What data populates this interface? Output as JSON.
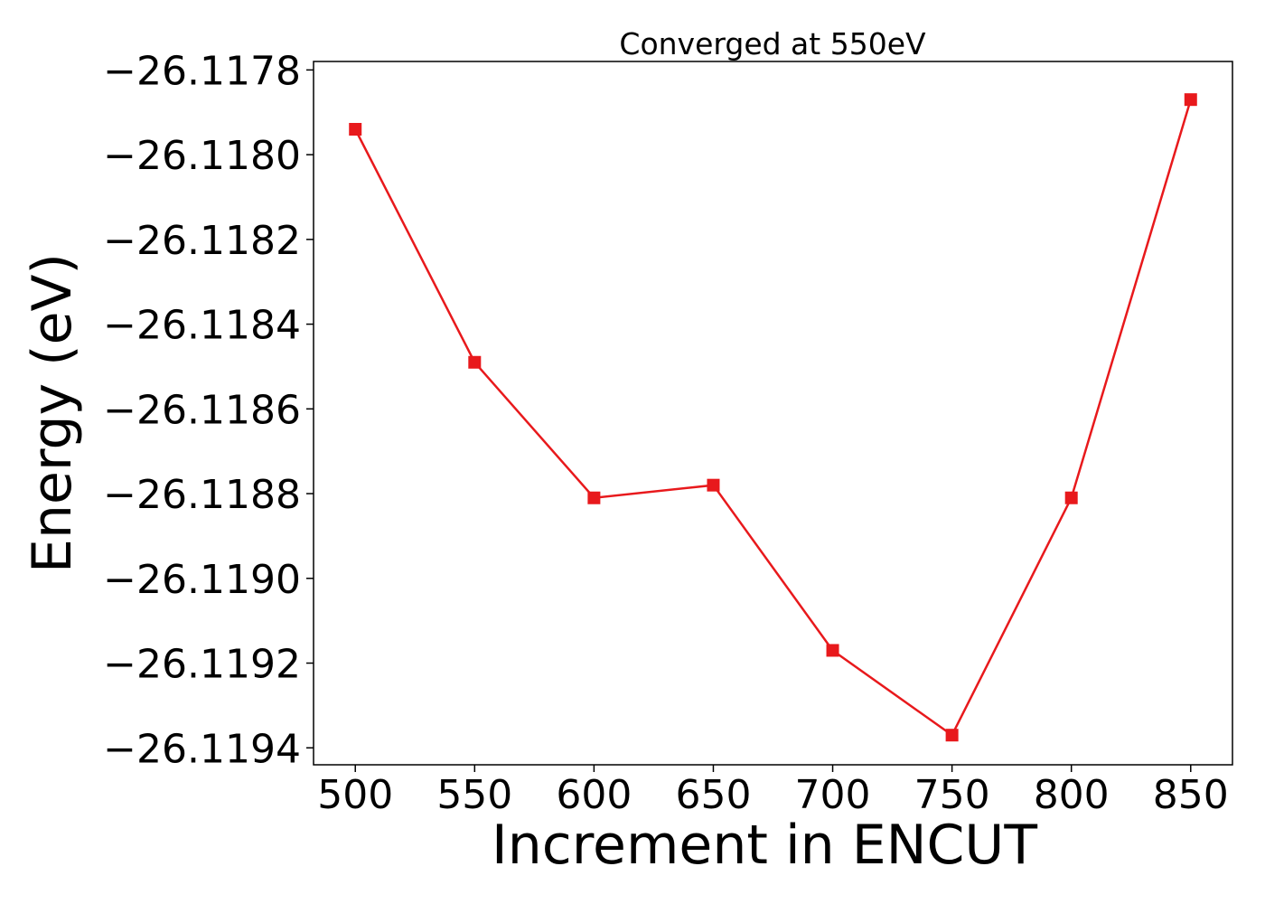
{
  "chart_data": {
    "type": "line",
    "title": "Converged at 550eV",
    "xlabel": "Increment in ENCUT",
    "ylabel": "Energy (eV)",
    "x": [
      500,
      550,
      600,
      650,
      700,
      750,
      800,
      850
    ],
    "series": [
      {
        "values": [
          -26.11794,
          -26.11849,
          -26.11881,
          -26.11878,
          -26.11917,
          -26.11937,
          -26.11881,
          -26.11787
        ],
        "color": "#e8191c",
        "marker": "square"
      }
    ],
    "xticks": [
      500,
      550,
      600,
      650,
      700,
      750,
      800,
      850
    ],
    "xtick_labels": [
      "500",
      "550",
      "600",
      "650",
      "700",
      "750",
      "800",
      "850"
    ],
    "yticks": [
      -26.1178,
      -26.118,
      -26.1182,
      -26.1184,
      -26.1186,
      -26.1188,
      -26.119,
      -26.1192,
      -26.1194
    ],
    "ytick_labels": [
      "−26.1178",
      "−26.1180",
      "−26.1182",
      "−26.1184",
      "−26.1186",
      "−26.1188",
      "−26.1190",
      "−26.1192",
      "−26.1194"
    ],
    "xlim": [
      482.5,
      867.5
    ],
    "ylim": [
      -26.11944,
      -26.11778
    ],
    "grid": false,
    "legend": false
  }
}
